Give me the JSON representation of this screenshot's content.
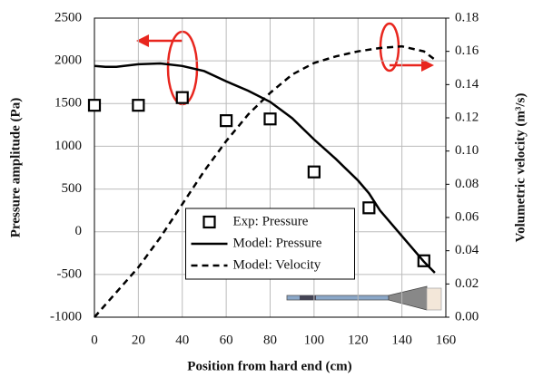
{
  "chart_data": {
    "type": "line",
    "xlabel": "Position from hard end (cm)",
    "ylabel": "Pressure amplitude (Pa)",
    "y2label": "Volumetric velocity (m³/s)",
    "xlim": [
      0,
      160
    ],
    "xticks": [
      0,
      20,
      40,
      60,
      80,
      100,
      120,
      140,
      160
    ],
    "ylim": [
      -1000,
      2500
    ],
    "yticks": [
      -1000,
      -500,
      0,
      500,
      1000,
      1500,
      2000,
      2500
    ],
    "y2lim": [
      0,
      0.18
    ],
    "y2ticks": [
      {
        "value": 0,
        "label": "0.00"
      },
      {
        "value": 0.02,
        "label": "0.02"
      },
      {
        "value": 0.04,
        "label": "0.04"
      },
      {
        "value": 0.06,
        "label": "0.06"
      },
      {
        "value": 0.08,
        "label": "0.08"
      },
      {
        "value": 0.1,
        "label": "0.10"
      },
      {
        "value": 0.12,
        "label": "0.12"
      },
      {
        "value": 0.14,
        "label": "0.14"
      },
      {
        "value": 0.16,
        "label": "0.16"
      },
      {
        "value": 0.18,
        "label": "0.18"
      }
    ],
    "grid": true,
    "legend": "lower center",
    "series": [
      {
        "name": "Exp: Pressure",
        "color": "#000000",
        "marker": "square",
        "x": [
          0,
          20,
          40,
          60,
          80,
          100,
          125,
          150
        ],
        "values": [
          1480,
          1480,
          1570,
          1300,
          1320,
          700,
          280,
          -340
        ]
      },
      {
        "name": "Model: Pressure",
        "color": "#000000",
        "dash": false,
        "x": [
          0,
          5,
          10,
          20,
          30,
          40,
          50,
          60,
          70,
          80,
          90,
          100,
          110,
          120,
          125,
          130,
          140,
          150,
          155
        ],
        "values": [
          1940,
          1930,
          1930,
          1960,
          1970,
          1940,
          1880,
          1760,
          1650,
          1520,
          1330,
          1080,
          850,
          600,
          450,
          250,
          -50,
          -350,
          -480
        ]
      },
      {
        "name": "Model: Velocity",
        "color": "#000000",
        "dash": true,
        "axis": "y2",
        "x": [
          0,
          10,
          20,
          30,
          40,
          50,
          60,
          70,
          80,
          90,
          100,
          110,
          120,
          130,
          140,
          150,
          155
        ],
        "values": [
          0,
          0.015,
          0.03,
          0.048,
          0.068,
          0.088,
          0.106,
          0.122,
          0.135,
          0.146,
          0.153,
          0.157,
          0.16,
          0.162,
          0.163,
          0.16,
          0.155
        ]
      }
    ]
  }
}
